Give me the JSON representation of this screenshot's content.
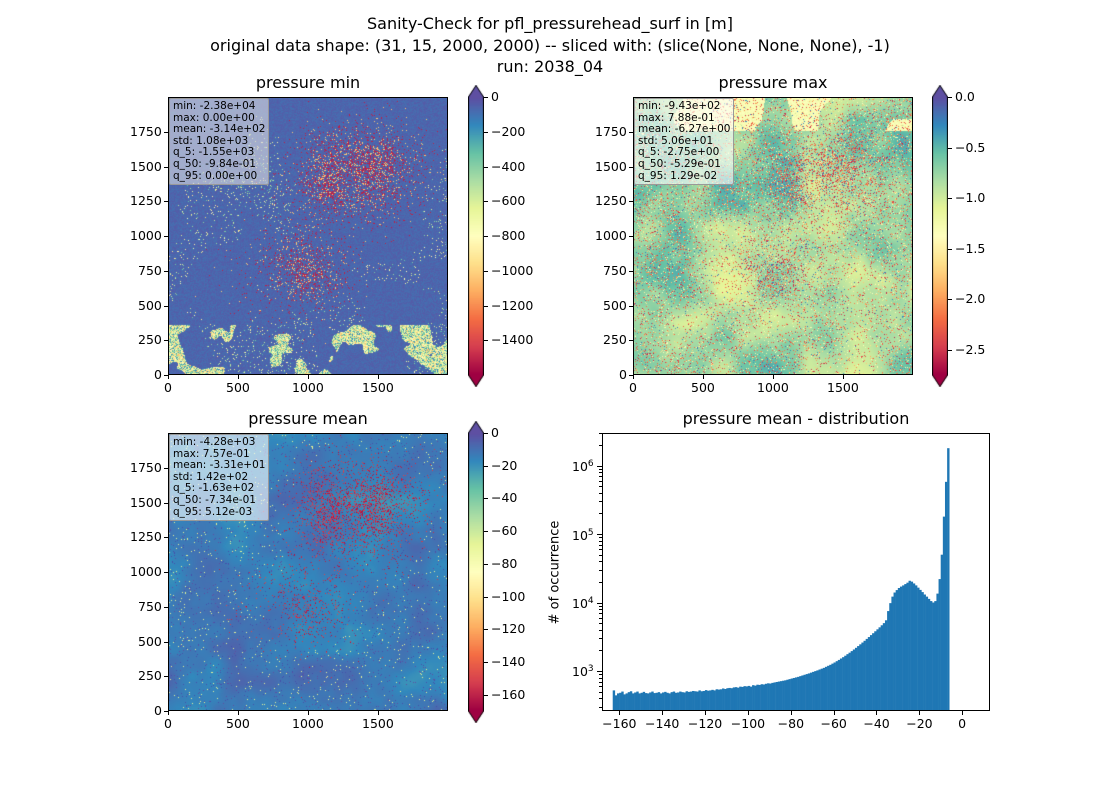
{
  "suptitle": {
    "line1": "Sanity-Check for pfl_pressurehead_surf in [m]",
    "line2": "original data shape: (31, 15, 2000, 2000) -- sliced with: (slice(None, None, None), -1)",
    "line3": "run: 2038_04"
  },
  "panels": [
    {
      "key": "min",
      "title": "pressure min",
      "stats": [
        "min: -2.38e+04",
        "max: 0.00e+00",
        "mean: -3.14e+02",
        "std: 1.08e+03",
        "q_5: -1.55e+03",
        "q_50: -9.84e-01",
        "q_95: 0.00e+00"
      ],
      "colorbar": {
        "vmin": -1600,
        "vmax": 0,
        "ticks": [
          0,
          -200,
          -400,
          -600,
          -800,
          -1000,
          -1200,
          -1400
        ],
        "extend": "both",
        "cmap": "Spectral"
      }
    },
    {
      "key": "max",
      "title": "pressure max",
      "stats": [
        "min: -9.43e+02",
        "max: 7.88e-01",
        "mean: -6.27e+00",
        "std: 5.06e+01",
        "q_5: -2.75e+00",
        "q_50: -5.29e-01",
        "q_95: 1.29e-02"
      ],
      "colorbar": {
        "vmin": -2.75,
        "vmax": 0.0,
        "ticks": [
          0.0,
          -0.5,
          -1.0,
          -1.5,
          -2.0,
          -2.5
        ],
        "tick_labels": [
          "0.0",
          "−0.5",
          "−1.0",
          "−1.5",
          "−2.0",
          "−2.5"
        ],
        "extend": "both",
        "cmap": "Spectral"
      }
    },
    {
      "key": "mean",
      "title": "pressure mean",
      "stats": [
        "min: -4.28e+03",
        "max: 7.57e-01",
        "mean: -3.31e+01",
        "std: 1.42e+02",
        "q_5: -1.63e+02",
        "q_50: -7.34e-01",
        "q_95: 5.12e-03"
      ],
      "colorbar": {
        "vmin": -170,
        "vmax": 0,
        "ticks": [
          0,
          -20,
          -40,
          -60,
          -80,
          -100,
          -120,
          -140,
          -160
        ],
        "extend": "both",
        "cmap": "Spectral"
      }
    }
  ],
  "image_axes": {
    "xticks": [
      0,
      500,
      1000,
      1500
    ],
    "yticks": [
      0,
      250,
      500,
      750,
      1000,
      1250,
      1500,
      1750
    ],
    "xlim": [
      0,
      2000
    ],
    "ylim": [
      0,
      2000
    ]
  },
  "chart_data": {
    "type": "bar",
    "title": "pressure mean - distribution",
    "ylabel": "# of occurrence",
    "xlabel": "",
    "yscale": "log",
    "xlim": [
      -168,
      13
    ],
    "ylim": [
      260,
      3000000
    ],
    "xticks": [
      -160,
      -140,
      -120,
      -100,
      -80,
      -60,
      -40,
      -20,
      0
    ],
    "yticks_exp": [
      3,
      4,
      5,
      6
    ],
    "bar_color": "#1f77b4",
    "bin_width": 1.0,
    "bin_left": [
      -163,
      -162,
      -161,
      -160,
      -159,
      -158,
      -157,
      -156,
      -155,
      -154,
      -153,
      -152,
      -151,
      -150,
      -149,
      -148,
      -147,
      -146,
      -145,
      -144,
      -143,
      -142,
      -141,
      -140,
      -139,
      -138,
      -137,
      -136,
      -135,
      -134,
      -133,
      -132,
      -131,
      -130,
      -129,
      -128,
      -127,
      -126,
      -125,
      -124,
      -123,
      -122,
      -121,
      -120,
      -119,
      -118,
      -117,
      -116,
      -115,
      -114,
      -113,
      -112,
      -111,
      -110,
      -109,
      -108,
      -107,
      -106,
      -105,
      -104,
      -103,
      -102,
      -101,
      -100,
      -99,
      -98,
      -97,
      -96,
      -95,
      -94,
      -93,
      -92,
      -91,
      -90,
      -89,
      -88,
      -87,
      -86,
      -85,
      -84,
      -83,
      -82,
      -81,
      -80,
      -79,
      -78,
      -77,
      -76,
      -75,
      -74,
      -73,
      -72,
      -71,
      -70,
      -69,
      -68,
      -67,
      -66,
      -65,
      -64,
      -63,
      -62,
      -61,
      -60,
      -59,
      -58,
      -57,
      -56,
      -55,
      -54,
      -53,
      -52,
      -51,
      -50,
      -49,
      -48,
      -47,
      -46,
      -45,
      -44,
      -43,
      -42,
      -41,
      -40,
      -39,
      -38,
      -37,
      -36,
      -35,
      -34,
      -33,
      -32,
      -31,
      -30,
      -29,
      -28,
      -27,
      -26,
      -25,
      -24,
      -23,
      -22,
      -21,
      -20,
      -19,
      -18,
      -17,
      -16,
      -15,
      -14,
      -13,
      -12,
      -11,
      -10,
      -9,
      -8,
      -7,
      -6,
      -5,
      -4,
      -3,
      -2,
      -1
    ],
    "counts": [
      520,
      440,
      470,
      480,
      500,
      455,
      470,
      490,
      505,
      470,
      485,
      500,
      470,
      480,
      495,
      475,
      470,
      485,
      500,
      475,
      480,
      490,
      470,
      485,
      495,
      480,
      470,
      490,
      500,
      480,
      485,
      500,
      490,
      485,
      505,
      495,
      500,
      510,
      505,
      500,
      520,
      505,
      510,
      525,
      515,
      520,
      530,
      520,
      540,
      535,
      540,
      555,
      545,
      560,
      565,
      560,
      575,
      580,
      570,
      590,
      585,
      600,
      595,
      605,
      590,
      620,
      610,
      630,
      625,
      640,
      635,
      650,
      660,
      655,
      670,
      680,
      690,
      700,
      710,
      720,
      730,
      745,
      760,
      775,
      790,
      805,
      820,
      840,
      860,
      880,
      900,
      920,
      945,
      970,
      995,
      1020,
      1050,
      1080,
      1110,
      1150,
      1190,
      1230,
      1280,
      1330,
      1390,
      1450,
      1520,
      1590,
      1670,
      1760,
      1850,
      1950,
      2060,
      2180,
      2310,
      2450,
      2600,
      2760,
      2940,
      3130,
      3340,
      3560,
      3800,
      4060,
      4340,
      4650,
      5000,
      5500,
      7500,
      9800,
      12200,
      14000,
      15200,
      16300,
      17100,
      17800,
      18600,
      19500,
      20800,
      20200,
      19000,
      17800,
      16500,
      15300,
      14200,
      13100,
      12200,
      11300,
      10500,
      10000,
      10500,
      13500,
      22000,
      50000,
      180000,
      580000,
      1800000
    ]
  }
}
